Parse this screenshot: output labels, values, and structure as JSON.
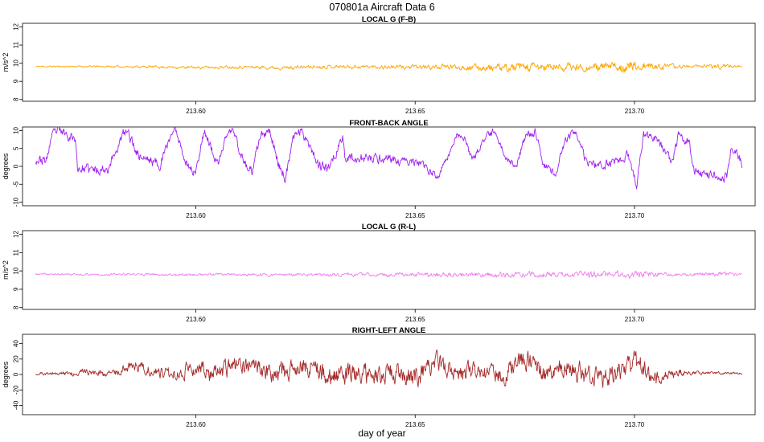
{
  "figure": {
    "title": "070801a    Aircraft Data 6",
    "xlabel": "day of year"
  },
  "chart_data": [
    {
      "type": "line",
      "title": "LOCAL G (F-B)",
      "ylabel": "m/s^2",
      "color": "#ffa500",
      "xlim": [
        213.5605,
        213.7275
      ],
      "ylim": [
        7.9,
        12.2
      ],
      "yticks": [
        8,
        9,
        10,
        11,
        12
      ],
      "xticks": [
        213.6,
        213.65,
        213.7
      ],
      "xtick_labels": [
        "213.60",
        "213.65",
        "213.70"
      ],
      "series": {
        "x_start": 213.5635,
        "x_end": 213.7245,
        "knots_x": [
          213.5635,
          213.575,
          213.59,
          213.6,
          213.61,
          213.62,
          213.63,
          213.64,
          213.65,
          213.66,
          213.67,
          213.68,
          213.69,
          213.7,
          213.71,
          213.72,
          213.7245
        ],
        "knots_y": [
          9.82,
          9.82,
          9.8,
          9.76,
          9.8,
          9.75,
          9.82,
          9.8,
          9.78,
          9.8,
          9.72,
          9.78,
          9.77,
          9.82,
          9.82,
          9.84,
          9.82
        ],
        "noise_x": [
          213.5635,
          213.6,
          213.63,
          213.655,
          213.665,
          213.675,
          213.69,
          213.7,
          213.706,
          213.715,
          213.72,
          213.7245
        ],
        "noise_amp": [
          0.03,
          0.06,
          0.08,
          0.1,
          0.14,
          0.2,
          0.16,
          0.24,
          0.12,
          0.05,
          0.12,
          0.05
        ],
        "seed": 11
      }
    },
    {
      "type": "line",
      "title": "FRONT-BACK ANGLE",
      "ylabel": "degrees",
      "color": "#a020f0",
      "xlim": [
        213.5605,
        213.7275
      ],
      "ylim": [
        -11,
        11
      ],
      "yticks": [
        -10,
        -5,
        0,
        5,
        10
      ],
      "xticks": [
        213.6,
        213.65,
        213.7
      ],
      "xtick_labels": [
        "213.60",
        "213.65",
        "213.70"
      ],
      "series": {
        "x_start": 213.5635,
        "x_end": 213.7245,
        "knots_x": [
          213.5635,
          213.566,
          213.567,
          213.5685,
          213.5725,
          213.573,
          213.577,
          213.58,
          213.5835,
          213.5845,
          213.587,
          213.589,
          213.592,
          213.5945,
          213.5955,
          213.598,
          213.6,
          213.6015,
          213.602,
          213.605,
          213.607,
          213.6085,
          213.611,
          213.613,
          213.6145,
          213.617,
          213.619,
          213.6205,
          213.6225,
          213.624,
          213.6255,
          213.628,
          213.63,
          213.6335,
          213.634,
          213.64,
          213.644,
          213.646,
          213.649,
          213.652,
          213.655,
          213.657,
          213.6595,
          213.6615,
          213.663,
          213.6655,
          213.668,
          213.6705,
          213.673,
          213.675,
          213.6775,
          213.679,
          213.682,
          213.6845,
          213.6865,
          213.689,
          213.692,
          213.6955,
          213.6985,
          213.7005,
          213.702,
          213.7055,
          213.7085,
          213.71,
          213.7125,
          213.7135,
          213.7165,
          213.721,
          213.722,
          213.7245
        ],
        "knots_y": [
          2,
          1.5,
          8,
          10,
          8,
          -0.5,
          -1,
          -0.5,
          9,
          9.5,
          3,
          2,
          0.5,
          9.5,
          10,
          0.5,
          -2,
          8.5,
          10,
          0,
          9,
          10,
          1,
          -2,
          8,
          9.5,
          0,
          -3,
          9,
          10,
          7.5,
          0.5,
          -1,
          8,
          2.5,
          2,
          2.5,
          1,
          1.5,
          0,
          -3,
          1.5,
          9,
          7.5,
          1,
          7,
          10,
          3,
          0,
          8,
          10,
          1,
          -2,
          8,
          9.5,
          1,
          0,
          1.5,
          3,
          -5,
          9,
          7,
          1,
          8,
          7,
          -1,
          -2,
          -3,
          5,
          1
        ],
        "noise_x": [
          213.5635,
          213.64,
          213.65,
          213.7245
        ],
        "noise_amp": [
          1.1,
          1.1,
          0.8,
          1.1
        ],
        "seed": 23
      }
    },
    {
      "type": "line",
      "title": "LOCAL G (R-L)",
      "ylabel": "m/s^2",
      "color": "#ee82ee",
      "xlim": [
        213.5605,
        213.7275
      ],
      "ylim": [
        7.9,
        12.2
      ],
      "yticks": [
        8,
        9,
        10,
        11,
        12
      ],
      "xticks": [
        213.6,
        213.65,
        213.7
      ],
      "xtick_labels": [
        "213.60",
        "213.65",
        "213.70"
      ],
      "series": {
        "x_start": 213.5635,
        "x_end": 213.7245,
        "knots_x": [
          213.5635,
          213.6,
          213.62,
          213.64,
          213.66,
          213.68,
          213.7,
          213.72,
          213.7245
        ],
        "knots_y": [
          9.82,
          9.8,
          9.78,
          9.8,
          9.79,
          9.8,
          9.8,
          9.82,
          9.82
        ],
        "noise_x": [
          213.5635,
          213.62,
          213.65,
          213.68,
          213.7,
          213.71,
          213.72,
          213.7245
        ],
        "noise_amp": [
          0.04,
          0.06,
          0.09,
          0.12,
          0.16,
          0.06,
          0.12,
          0.04
        ],
        "seed": 37
      }
    },
    {
      "type": "line",
      "title": "RIGHT-LEFT ANGLE",
      "ylabel": "degrees",
      "color": "#a52a2a",
      "xlim": [
        213.5605,
        213.7275
      ],
      "ylim": [
        -52,
        52
      ],
      "yticks": [
        -40,
        -20,
        0,
        20,
        40
      ],
      "xticks": [
        213.6,
        213.65,
        213.7
      ],
      "xtick_labels": [
        "213.60",
        "213.65",
        "213.70"
      ],
      "series": {
        "x_start": 213.5635,
        "x_end": 213.7245,
        "knots_x": [
          213.5635,
          213.57,
          213.575,
          213.58,
          213.586,
          213.59,
          213.595,
          213.6,
          213.605,
          213.61,
          213.615,
          213.62,
          213.625,
          213.628,
          213.632,
          213.635,
          213.64,
          213.645,
          213.65,
          213.655,
          213.66,
          213.665,
          213.67,
          213.675,
          213.68,
          213.685,
          213.69,
          213.695,
          213.7,
          213.705,
          213.71,
          213.715,
          213.72,
          213.7245
        ],
        "knots_y": [
          1,
          1,
          4,
          0,
          12,
          5,
          2,
          10,
          0,
          15,
          5,
          0,
          15,
          5,
          0,
          2,
          -3,
          5,
          -5,
          15,
          0,
          5,
          0,
          20,
          0,
          10,
          -5,
          0,
          15,
          -5,
          3,
          2,
          2,
          1
        ],
        "noise_x": [
          213.5635,
          213.58,
          213.6,
          213.63,
          213.65,
          213.66,
          213.68,
          213.7,
          213.705,
          213.715,
          213.7245
        ],
        "noise_amp": [
          1.2,
          4,
          8,
          11,
          10,
          9,
          10,
          11,
          7,
          1.5,
          1.2
        ],
        "seed": 51
      }
    }
  ]
}
